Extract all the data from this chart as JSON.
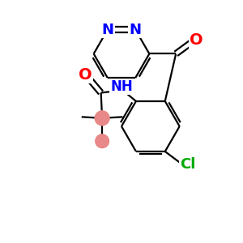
{
  "bg_color": "#ffffff",
  "atom_colors": {
    "N": "#0000ff",
    "O": "#ff0000",
    "Cl": "#00aa00",
    "C": "#000000",
    "NH": "#0000ff"
  },
  "figsize": [
    3.0,
    3.0
  ],
  "dpi": 100,
  "lw": 1.6,
  "fs": 13,
  "circle_color": "#e88888"
}
